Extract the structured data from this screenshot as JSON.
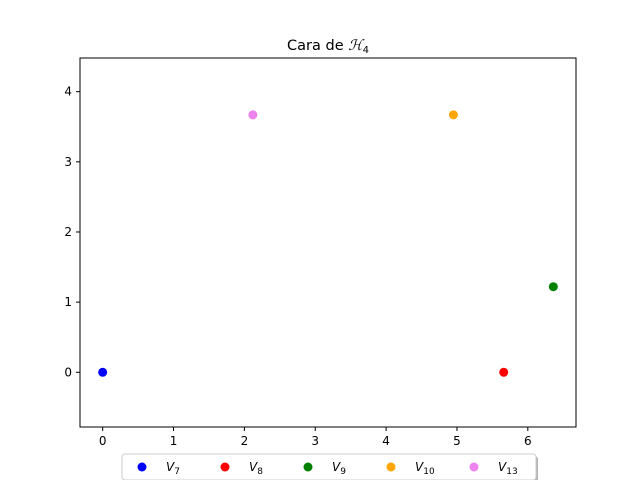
{
  "chart_data": {
    "type": "scatter",
    "title_prefix": "Cara de ",
    "title_symbol": "ℋ",
    "title_sub": "4",
    "xlabel": "",
    "ylabel": "",
    "xlim": [
      -0.32,
      6.68
    ],
    "ylim": [
      -0.78,
      4.48
    ],
    "xticks": [
      0,
      1,
      2,
      3,
      4,
      5,
      6
    ],
    "yticks": [
      0,
      1,
      2,
      3,
      4
    ],
    "grid": false,
    "legend_placement": "bottom-center",
    "series": [
      {
        "name": "V",
        "sub": "7",
        "x": 0.0,
        "y": 0.0,
        "color": "#0000ff"
      },
      {
        "name": "V",
        "sub": "8",
        "x": 5.66,
        "y": 0.0,
        "color": "#ff0000"
      },
      {
        "name": "V",
        "sub": "9",
        "x": 6.36,
        "y": 1.22,
        "color": "#008000"
      },
      {
        "name": "V",
        "sub": "10",
        "x": 4.95,
        "y": 3.67,
        "color": "#ffa500"
      },
      {
        "name": "V",
        "sub": "13",
        "x": 2.12,
        "y": 3.67,
        "color": "#ee82ee"
      }
    ]
  }
}
